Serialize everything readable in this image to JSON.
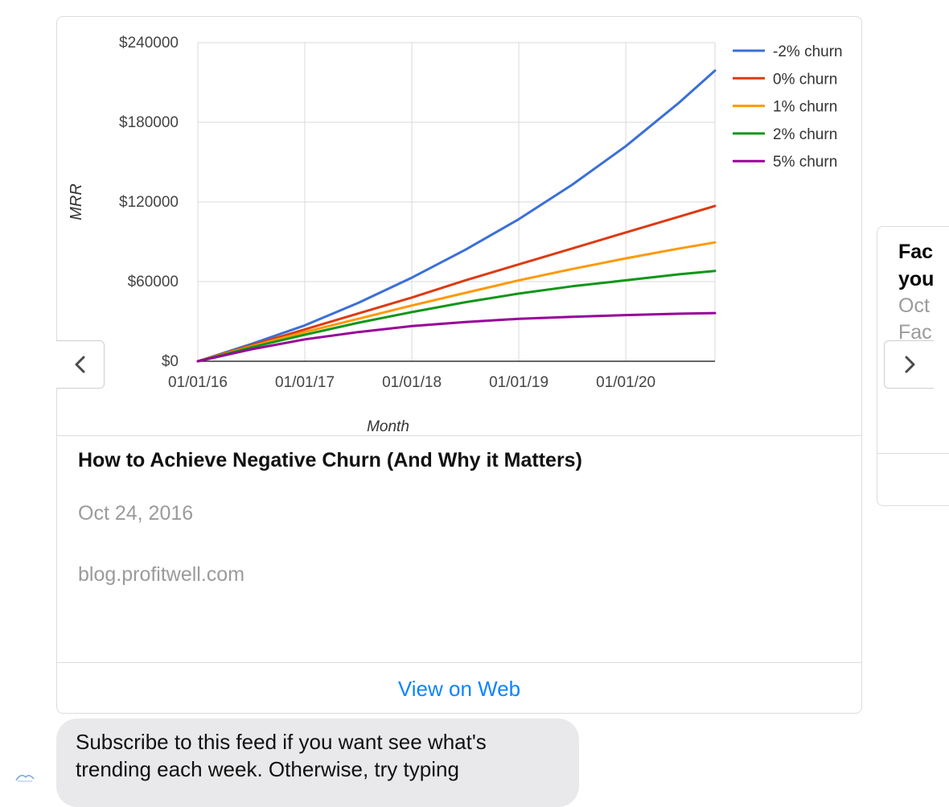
{
  "article": {
    "title": "How to Achieve Negative Churn (And Why it Matters)",
    "date": "Oct 24, 2016",
    "source": "blog.profitwell.com",
    "view_label": "View on Web"
  },
  "next_card": {
    "title_visible": "Fac\nyou",
    "meta_visible": "Oct\nFac"
  },
  "message": {
    "text": "Subscribe to this feed if you want see what's trending each week. Otherwise, try typing"
  },
  "colors": {
    "link": "#0a84ff",
    "series": [
      "#3b6fd8",
      "#dc3b12",
      "#ff9900",
      "#109618",
      "#990099"
    ]
  },
  "chart_data": {
    "type": "line",
    "title": "",
    "xlabel": "Month",
    "ylabel": "MRR",
    "ylim": [
      0,
      240000
    ],
    "yticks": [
      "$0",
      "$60000",
      "$120000",
      "$180000",
      "$240000"
    ],
    "ytick_values": [
      0,
      60000,
      120000,
      180000,
      240000
    ],
    "xticks": [
      "01/01/16",
      "01/01/17",
      "01/01/18",
      "01/01/19",
      "01/01/20"
    ],
    "xtick_values": [
      0,
      12,
      24,
      36,
      48
    ],
    "x": [
      0,
      6,
      12,
      18,
      24,
      30,
      36,
      42,
      48,
      54,
      58
    ],
    "legend_position": "right",
    "grid": true,
    "series": [
      {
        "name": "-2% churn",
        "values": [
          0,
          13000,
          27000,
          44000,
          63000,
          84000,
          107000,
          133000,
          162000,
          195000,
          219000
        ]
      },
      {
        "name": "0% churn",
        "values": [
          0,
          12000,
          24000,
          36000,
          48000,
          61000,
          73000,
          85000,
          97000,
          109000,
          117000
        ]
      },
      {
        "name": "1% churn",
        "values": [
          0,
          11300,
          22000,
          32000,
          42000,
          51500,
          61000,
          69500,
          77500,
          85000,
          89500
        ]
      },
      {
        "name": "2% churn",
        "values": [
          0,
          10500,
          20000,
          29000,
          37000,
          44500,
          51000,
          56500,
          61000,
          65500,
          68000
        ]
      },
      {
        "name": "5% churn",
        "values": [
          0,
          9000,
          16500,
          22000,
          26500,
          29500,
          32000,
          33500,
          34800,
          35800,
          36300
        ]
      }
    ]
  }
}
